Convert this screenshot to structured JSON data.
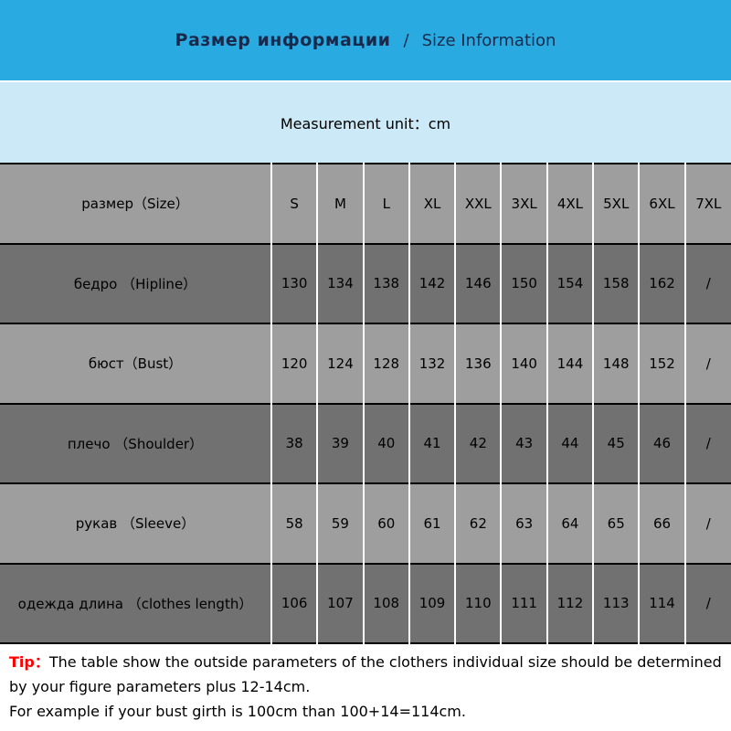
{
  "header": {
    "title_ru": "Размер информации",
    "separator": "/",
    "title_en": "Size Information",
    "bg_color": "#29ABE2",
    "text_color": "#18294B"
  },
  "unit_bar": {
    "text": "Measurement unit：cm",
    "bg_color": "#CBE9F6"
  },
  "table": {
    "row_light_color": "#9E9E9E",
    "row_dark_color": "#717171",
    "header_row": {
      "label": "размер（Size）",
      "values": [
        "S",
        "M",
        "L",
        "XL",
        "XXL",
        "3XL",
        "4XL",
        "5XL",
        "6XL",
        "7XL"
      ]
    },
    "rows": [
      {
        "label": "бедро （Hipline）",
        "values": [
          "130",
          "134",
          "138",
          "142",
          "146",
          "150",
          "154",
          "158",
          "162",
          "/"
        ]
      },
      {
        "label": "бюст（Bust）",
        "values": [
          "120",
          "124",
          "128",
          "132",
          "136",
          "140",
          "144",
          "148",
          "152",
          "/"
        ]
      },
      {
        "label": "плечо （Shoulder）",
        "values": [
          "38",
          "39",
          "40",
          "41",
          "42",
          "43",
          "44",
          "45",
          "46",
          "/"
        ]
      },
      {
        "label": "рукав （Sleeve）",
        "values": [
          "58",
          "59",
          "60",
          "61",
          "62",
          "63",
          "64",
          "65",
          "66",
          "/"
        ]
      },
      {
        "label": "одежда длина （clothes length）",
        "values": [
          "106",
          "107",
          "108",
          "109",
          "110",
          "111",
          "112",
          "113",
          "114",
          "/"
        ]
      }
    ]
  },
  "tip": {
    "label": "Tip：",
    "line1": "The table show the outside parameters of the clothers individual size should be determined by your figure parameters plus 12-14cm.",
    "line2": "For example if your bust girth is 100cm than 100+14=114cm.",
    "label_color": "#FF0000"
  },
  "chart_data": {
    "type": "table",
    "title": "Размер информации / Size Information",
    "subtitle": "Measurement unit：cm",
    "columns": [
      "размер（Size）",
      "S",
      "M",
      "L",
      "XL",
      "XXL",
      "3XL",
      "4XL",
      "5XL",
      "6XL",
      "7XL"
    ],
    "rows": [
      [
        "бедро （Hipline）",
        130,
        134,
        138,
        142,
        146,
        150,
        154,
        158,
        162,
        "/"
      ],
      [
        "бюст（Bust）",
        120,
        124,
        128,
        132,
        136,
        140,
        144,
        148,
        152,
        "/"
      ],
      [
        "плечо （Shoulder）",
        38,
        39,
        40,
        41,
        42,
        43,
        44,
        45,
        46,
        "/"
      ],
      [
        "рукав （Sleeve）",
        58,
        59,
        60,
        61,
        62,
        63,
        64,
        65,
        66,
        "/"
      ],
      [
        "одежда длина （clothes length）",
        106,
        107,
        108,
        109,
        110,
        111,
        112,
        113,
        114,
        "/"
      ]
    ],
    "notes": "Tip：The table show the outside parameters of the clothers individual size should be determined by your figure parameters plus 12-14cm. For example if your bust girth is 100cm than 100+14=114cm."
  }
}
